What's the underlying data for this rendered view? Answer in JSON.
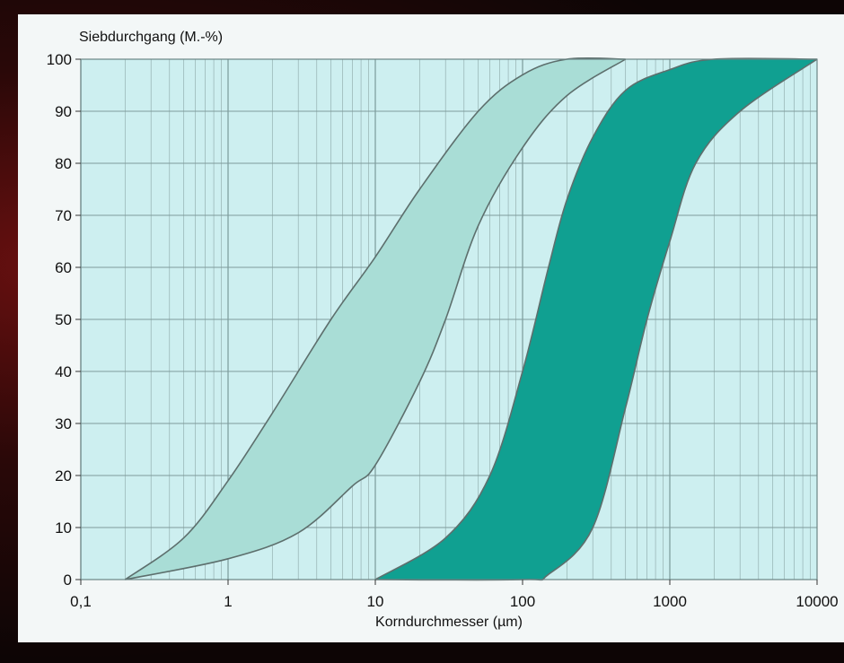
{
  "chart_data": {
    "type": "area",
    "title": "",
    "ylabel": "Siebdurchgang (M.-%)",
    "xlabel": "Korndurchmesser (µm)",
    "xscale": "log",
    "xlim": [
      0.1,
      10000
    ],
    "ylim": [
      0,
      100
    ],
    "x_ticks": [
      "0,1",
      "1",
      "10",
      "100",
      "1000",
      "10000"
    ],
    "y_ticks": [
      "0",
      "10",
      "20",
      "30",
      "40",
      "50",
      "60",
      "70",
      "80",
      "90",
      "100"
    ],
    "grid": true,
    "legend": "none",
    "series": [
      {
        "fill": "#a9ddd6",
        "upper": [
          [
            0.2,
            0
          ],
          [
            0.5,
            8
          ],
          [
            1,
            19
          ],
          [
            2,
            32
          ],
          [
            5,
            50
          ],
          [
            10,
            62
          ],
          [
            20,
            75
          ],
          [
            50,
            90
          ],
          [
            100,
            97
          ],
          [
            200,
            100
          ],
          [
            500,
            100
          ]
        ],
        "lower": [
          [
            0.2,
            0
          ],
          [
            1,
            4
          ],
          [
            3,
            9
          ],
          [
            7,
            18
          ],
          [
            10,
            22
          ],
          [
            20,
            38
          ],
          [
            30,
            50
          ],
          [
            50,
            68
          ],
          [
            100,
            83
          ],
          [
            200,
            93
          ],
          [
            500,
            100
          ]
        ]
      },
      {
        "fill": "#10a091",
        "upper": [
          [
            10,
            0
          ],
          [
            30,
            8
          ],
          [
            60,
            20
          ],
          [
            100,
            40
          ],
          [
            150,
            60
          ],
          [
            200,
            73
          ],
          [
            300,
            85
          ],
          [
            500,
            94
          ],
          [
            1000,
            98
          ],
          [
            2000,
            100
          ],
          [
            10000,
            100
          ]
        ],
        "lower": [
          [
            10,
            0
          ],
          [
            100,
            0
          ],
          [
            150,
            1
          ],
          [
            300,
            10
          ],
          [
            500,
            33
          ],
          [
            700,
            50
          ],
          [
            1000,
            65
          ],
          [
            1500,
            80
          ],
          [
            3000,
            90
          ],
          [
            10000,
            100
          ]
        ]
      }
    ]
  }
}
